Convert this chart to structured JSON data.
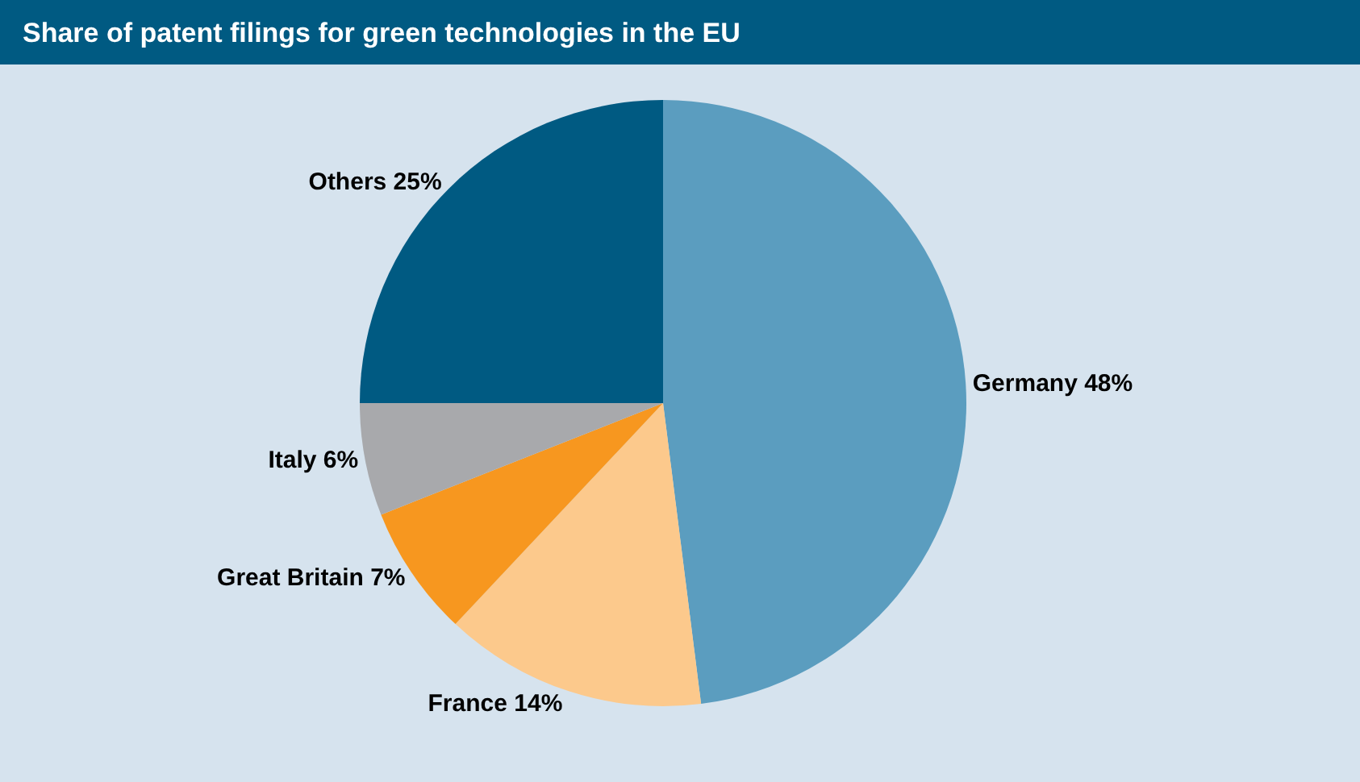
{
  "chart_data": {
    "type": "pie",
    "title": "Share of patent filings for green technologies in the EU",
    "categories": [
      "Germany",
      "France",
      "Great Britain",
      "Italy",
      "Others"
    ],
    "values": [
      48,
      14,
      7,
      6,
      25
    ],
    "value_labels": [
      "48%",
      "14%",
      "7%",
      "6%",
      "25%"
    ],
    "colors": [
      "#5b9dbf",
      "#fcc98c",
      "#f7971f",
      "#a8a9ac",
      "#005a82"
    ],
    "legend": false
  }
}
